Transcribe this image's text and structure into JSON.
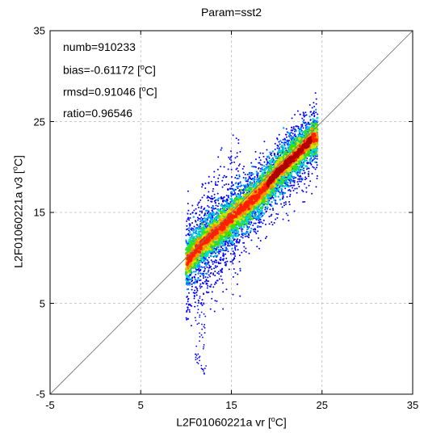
{
  "chart_data": {
    "type": "heatmap",
    "title": "Param=sst2",
    "xlabel": {
      "prefix": "L2F01060221a vr [",
      "sup": "o",
      "suffix": "C]"
    },
    "ylabel": {
      "prefix": "L2F01060221a v3 [",
      "sup": "o",
      "suffix": "C]"
    },
    "xlim": [
      -5,
      35
    ],
    "ylim": [
      -5,
      35
    ],
    "xticks": [
      "-5",
      "5",
      "15",
      "25",
      "35"
    ],
    "yticks": [
      "-5",
      "5",
      "15",
      "25",
      "35"
    ],
    "grid": true,
    "reference_line": "y=x",
    "stats": {
      "numb": "numb=910233",
      "bias": {
        "prefix": "bias=-0.61172 [",
        "sup": "o",
        "suffix": "C]"
      },
      "rmsd": {
        "prefix": "rmsd=0.91046 [",
        "sup": "o",
        "suffix": "C]"
      },
      "ratio": "ratio=0.96546"
    },
    "density": {
      "x_range": [
        10,
        24.5
      ],
      "ridge": [
        [
          10,
          9.5
        ],
        [
          12,
          11.8
        ],
        [
          14,
          13.5
        ],
        [
          16,
          15.3
        ],
        [
          18,
          16.9
        ],
        [
          20,
          19.4
        ],
        [
          22,
          21.2
        ],
        [
          24,
          23.2
        ]
      ],
      "colors": [
        "#0000ff",
        "#00a0ff",
        "#00e0c0",
        "#40e000",
        "#d8e000",
        "#ff9000",
        "#ff2000",
        "#b00000"
      ]
    }
  }
}
